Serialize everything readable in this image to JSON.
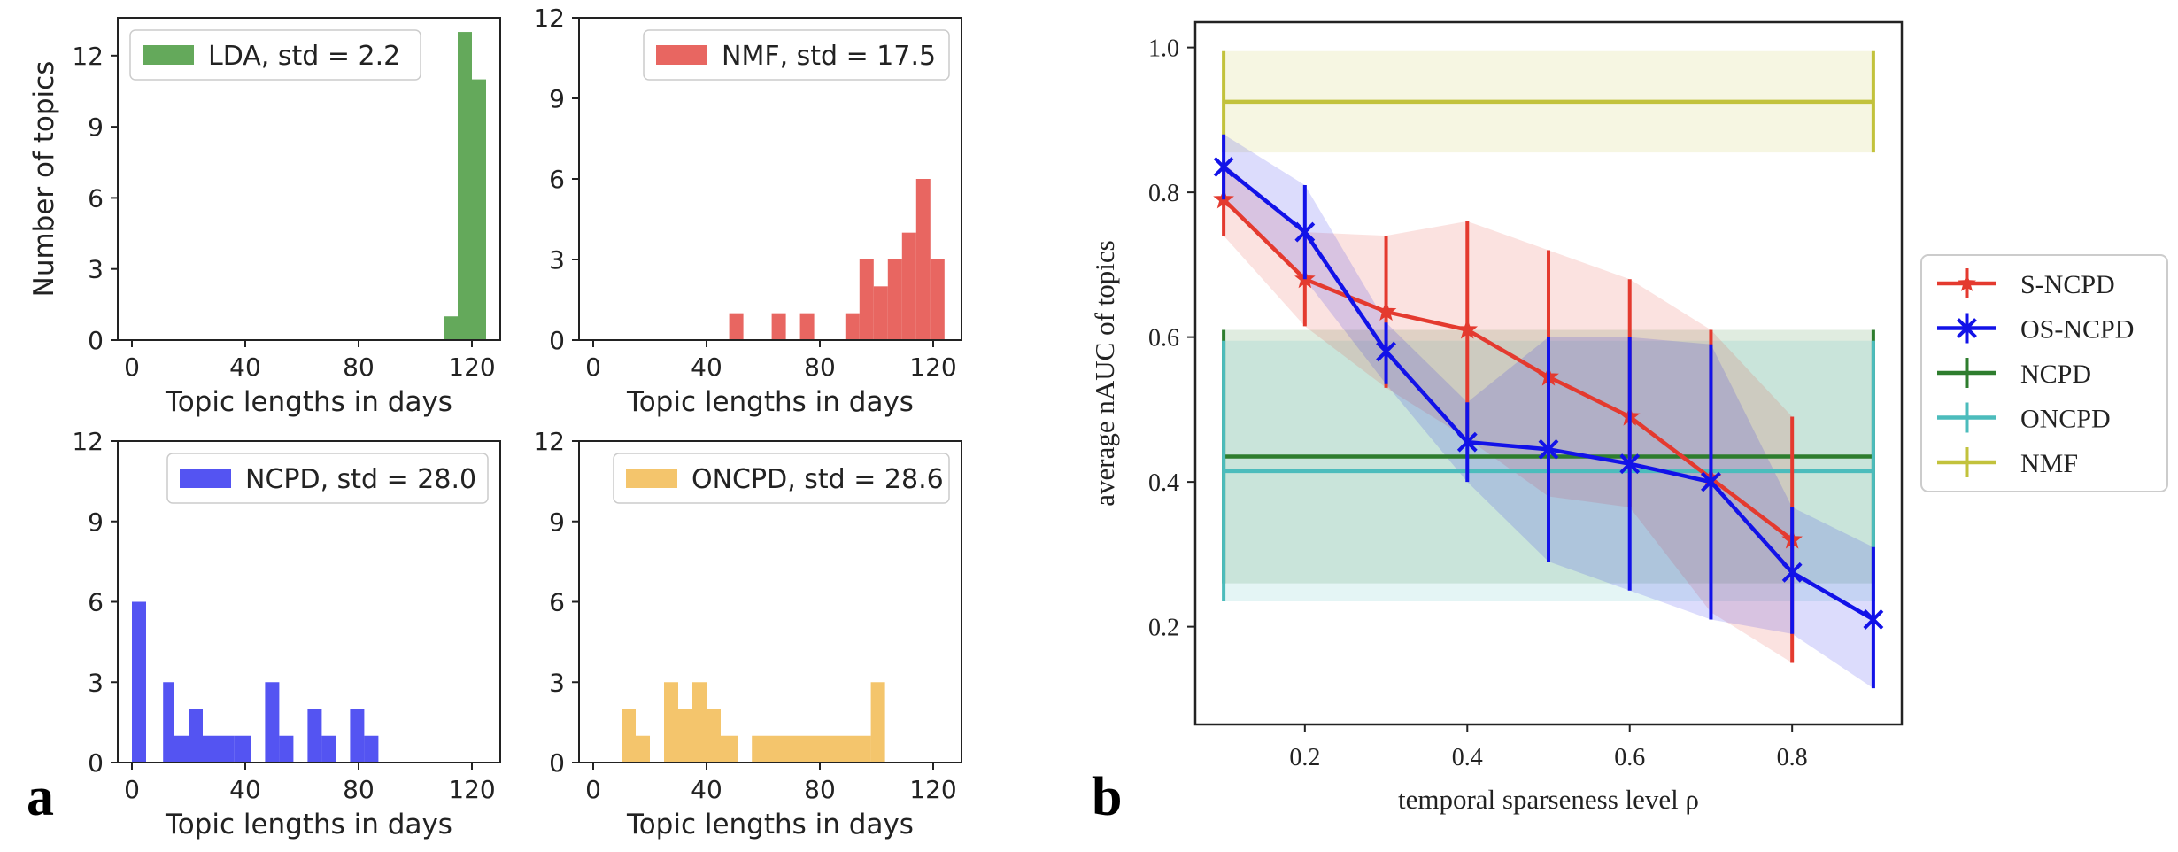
{
  "panel_labels": {
    "a": "a",
    "b": "b"
  },
  "chart_data": [
    {
      "type": "bar",
      "id": "lda",
      "legend": "LDA, std = 2.2",
      "color": "#4f9d44",
      "legend_loc": "top-left",
      "xlabel": "Topic lengths in days",
      "ylabel": "Number of topics",
      "xlim": [
        -5,
        130
      ],
      "ylim": [
        0,
        13.6
      ],
      "xticks": [
        "0",
        "40",
        "80",
        "120"
      ],
      "xtick_values": [
        0,
        40,
        80,
        120
      ],
      "yticks": [
        "0",
        "3",
        "6",
        "9",
        "12"
      ],
      "ytick_values": [
        0,
        3,
        6,
        9,
        12
      ],
      "bins": [
        {
          "x0": 110,
          "x1": 115,
          "value": 1
        },
        {
          "x0": 115,
          "x1": 120,
          "value": 13
        },
        {
          "x0": 120,
          "x1": 125,
          "value": 11
        }
      ]
    },
    {
      "type": "bar",
      "id": "nmf",
      "legend": "NMF, std = 17.5",
      "color": "#e5514b",
      "legend_loc": "top-right",
      "xlabel": "Topic lengths in days",
      "ylabel": "",
      "xlim": [
        -5,
        130
      ],
      "ylim": [
        0,
        12
      ],
      "xticks": [
        "0",
        "40",
        "80",
        "120"
      ],
      "xtick_values": [
        0,
        40,
        80,
        120
      ],
      "yticks": [
        "0",
        "3",
        "6",
        "9",
        "12"
      ],
      "ytick_values": [
        0,
        3,
        6,
        9,
        12
      ],
      "bins": [
        {
          "x0": 48,
          "x1": 53,
          "value": 1
        },
        {
          "x0": 63,
          "x1": 68,
          "value": 1
        },
        {
          "x0": 73,
          "x1": 78,
          "value": 1
        },
        {
          "x0": 89,
          "x1": 94,
          "value": 1
        },
        {
          "x0": 94,
          "x1": 99,
          "value": 3
        },
        {
          "x0": 99,
          "x1": 104,
          "value": 2
        },
        {
          "x0": 104,
          "x1": 109,
          "value": 3
        },
        {
          "x0": 109,
          "x1": 114,
          "value": 4
        },
        {
          "x0": 114,
          "x1": 119,
          "value": 6
        },
        {
          "x0": 119,
          "x1": 124,
          "value": 3
        }
      ]
    },
    {
      "type": "bar",
      "id": "ncpd",
      "legend": "NCPD, std = 28.0",
      "color": "#3c3cf0",
      "legend_loc": "top-right",
      "xlabel": "Topic lengths in days",
      "ylabel": "",
      "xlim": [
        -5,
        130
      ],
      "ylim": [
        0,
        12
      ],
      "xticks": [
        "0",
        "40",
        "80",
        "120"
      ],
      "xtick_values": [
        0,
        40,
        80,
        120
      ],
      "yticks": [
        "0",
        "3",
        "6",
        "9",
        "12"
      ],
      "ytick_values": [
        0,
        3,
        6,
        9,
        12
      ],
      "bins": [
        {
          "x0": 0,
          "x1": 5,
          "value": 6
        },
        {
          "x0": 11,
          "x1": 15,
          "value": 3
        },
        {
          "x0": 15,
          "x1": 20,
          "value": 1
        },
        {
          "x0": 20,
          "x1": 25,
          "value": 2
        },
        {
          "x0": 25,
          "x1": 30,
          "value": 1
        },
        {
          "x0": 30,
          "x1": 36,
          "value": 1
        },
        {
          "x0": 36,
          "x1": 42,
          "value": 1
        },
        {
          "x0": 47,
          "x1": 52,
          "value": 3
        },
        {
          "x0": 52,
          "x1": 57,
          "value": 1
        },
        {
          "x0": 62,
          "x1": 67,
          "value": 2
        },
        {
          "x0": 67,
          "x1": 72,
          "value": 1
        },
        {
          "x0": 77,
          "x1": 82,
          "value": 2
        },
        {
          "x0": 82,
          "x1": 87,
          "value": 1
        }
      ]
    },
    {
      "type": "bar",
      "id": "oncpd",
      "legend": "ONCPD, std = 28.6",
      "color": "#f3bd58",
      "legend_loc": "top-right",
      "xlabel": "Topic lengths in days",
      "ylabel": "",
      "xlim": [
        -5,
        130
      ],
      "ylim": [
        0,
        12
      ],
      "xticks": [
        "0",
        "40",
        "80",
        "120"
      ],
      "xtick_values": [
        0,
        40,
        80,
        120
      ],
      "yticks": [
        "0",
        "3",
        "6",
        "9",
        "12"
      ],
      "ytick_values": [
        0,
        3,
        6,
        9,
        12
      ],
      "bins": [
        {
          "x0": 10,
          "x1": 15,
          "value": 2
        },
        {
          "x0": 15,
          "x1": 20,
          "value": 1
        },
        {
          "x0": 25,
          "x1": 30,
          "value": 3
        },
        {
          "x0": 30,
          "x1": 35,
          "value": 2
        },
        {
          "x0": 35,
          "x1": 40,
          "value": 3
        },
        {
          "x0": 40,
          "x1": 45,
          "value": 2
        },
        {
          "x0": 45,
          "x1": 51,
          "value": 1
        },
        {
          "x0": 56,
          "x1": 98,
          "value": 1
        },
        {
          "x0": 98,
          "x1": 103,
          "value": 3
        }
      ]
    },
    {
      "type": "line",
      "id": "nauc",
      "xlabel": "temporal sparseness level ρ",
      "ylabel": "average nAUC of topics",
      "xlim": [
        0.065,
        0.935
      ],
      "ylim": [
        0.065,
        1.035
      ],
      "xticks": [
        "0.2",
        "0.4",
        "0.6",
        "0.8"
      ],
      "xtick_values": [
        0.2,
        0.4,
        0.6,
        0.8
      ],
      "yticks": [
        "0.2",
        "0.4",
        "0.6",
        "0.8",
        "1.0"
      ],
      "ytick_values": [
        0.2,
        0.4,
        0.6,
        0.8,
        1.0
      ],
      "legend_loc": "outside right",
      "series": [
        {
          "name": "S-NCPD",
          "color": "#e43a2f",
          "marker": "star",
          "x": [
            0.1,
            0.2,
            0.3,
            0.4,
            0.5,
            0.6,
            0.7,
            0.8
          ],
          "y": [
            0.79,
            0.68,
            0.635,
            0.61,
            0.545,
            0.49,
            0.405,
            0.32
          ],
          "yerr_low": [
            0.74,
            0.615,
            0.53,
            0.46,
            0.38,
            0.365,
            0.4,
            0.15
          ],
          "yerr_high": [
            0.84,
            0.745,
            0.74,
            0.76,
            0.72,
            0.68,
            0.61,
            0.49
          ],
          "band_low": [
            0.74,
            0.615,
            0.53,
            0.46,
            0.38,
            0.365,
            0.22,
            0.15
          ],
          "band_high": [
            0.84,
            0.745,
            0.74,
            0.76,
            0.72,
            0.68,
            0.61,
            0.49
          ]
        },
        {
          "name": "OS-NCPD",
          "color": "#1212e8",
          "marker": "x",
          "x": [
            0.1,
            0.2,
            0.3,
            0.4,
            0.5,
            0.6,
            0.7,
            0.8,
            0.9
          ],
          "y": [
            0.835,
            0.745,
            0.58,
            0.455,
            0.445,
            0.425,
            0.4,
            0.275,
            0.21
          ],
          "yerr_low": [
            0.79,
            0.68,
            0.535,
            0.4,
            0.29,
            0.25,
            0.21,
            0.19,
            0.115
          ],
          "yerr_high": [
            0.88,
            0.81,
            0.62,
            0.51,
            0.6,
            0.6,
            0.59,
            0.365,
            0.31
          ],
          "band_low": [
            0.79,
            0.68,
            0.535,
            0.4,
            0.29,
            0.25,
            0.21,
            0.19,
            0.115
          ],
          "band_high": [
            0.88,
            0.81,
            0.62,
            0.51,
            0.6,
            0.6,
            0.59,
            0.365,
            0.31
          ]
        },
        {
          "name": "NCPD",
          "color": "#2e7d2e",
          "x": [
            0.1,
            0.9
          ],
          "y": [
            0.435,
            0.435
          ],
          "yerr_low": [
            0.26,
            0.26
          ],
          "yerr_high": [
            0.61,
            0.61
          ],
          "band_low": [
            0.26,
            0.26
          ],
          "band_high": [
            0.61,
            0.61
          ]
        },
        {
          "name": "ONCPD",
          "color": "#4cbcbc",
          "x": [
            0.1,
            0.9
          ],
          "y": [
            0.415,
            0.415
          ],
          "yerr_low": [
            0.235,
            0.235
          ],
          "yerr_high": [
            0.595,
            0.595
          ],
          "band_low": [
            0.235,
            0.235
          ],
          "band_high": [
            0.595,
            0.595
          ]
        },
        {
          "name": "NMF",
          "color": "#c2c23c",
          "x": [
            0.1,
            0.9
          ],
          "y": [
            0.925,
            0.925
          ],
          "yerr_low": [
            0.855,
            0.855
          ],
          "yerr_high": [
            0.995,
            0.995
          ],
          "band_low": [
            0.855,
            0.855
          ],
          "band_high": [
            0.995,
            0.995
          ]
        }
      ]
    }
  ]
}
